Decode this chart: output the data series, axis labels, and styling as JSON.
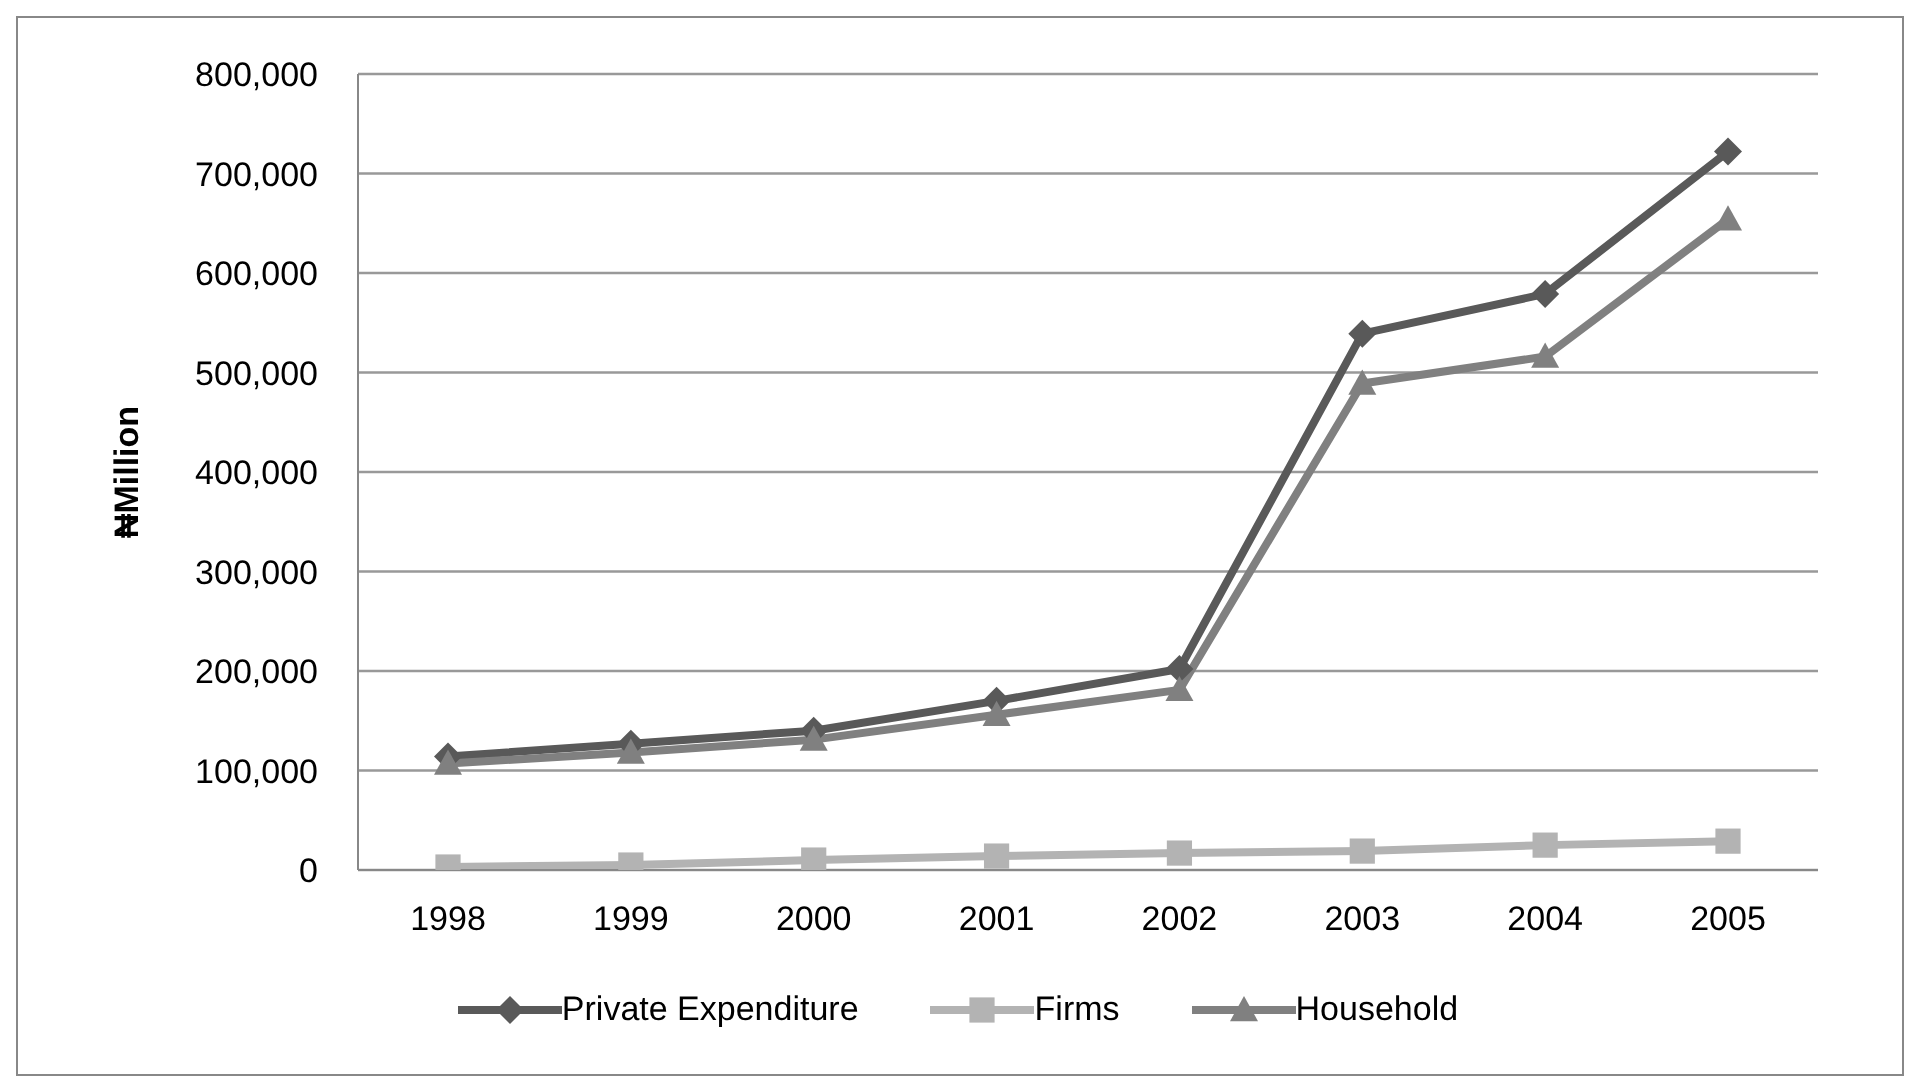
{
  "chart_data": {
    "type": "line",
    "ylabel": "₦Million",
    "categories": [
      "1998",
      "1999",
      "2000",
      "2001",
      "2002",
      "2003",
      "2004",
      "2005"
    ],
    "series": [
      {
        "name": "Private Expenditure",
        "color": "#595959",
        "marker": "diamond",
        "values": [
          114000,
          127000,
          140000,
          170000,
          202000,
          539000,
          579000,
          722000
        ]
      },
      {
        "name": "Firms",
        "color": "#b3b3b3",
        "marker": "square",
        "values": [
          3000,
          5000,
          10000,
          14000,
          17000,
          19000,
          25000,
          29000
        ]
      },
      {
        "name": "Household",
        "color": "#808080",
        "marker": "triangle",
        "values": [
          107000,
          118000,
          131000,
          156000,
          181000,
          489000,
          516000,
          654000
        ]
      }
    ],
    "ylim": [
      0,
      800000
    ],
    "yticks": [
      0,
      {
        "value": 100000,
        "label": "100,000"
      },
      {
        "value": 200000,
        "label": "200,000"
      },
      {
        "value": 300000,
        "label": "300,000"
      },
      {
        "value": 400000,
        "label": "400,000"
      },
      {
        "value": 500000,
        "label": "500,000"
      },
      {
        "value": 600000,
        "label": "600,000"
      },
      {
        "value": 700000,
        "label": "700,000"
      },
      {
        "value": 800000,
        "label": "800,000"
      }
    ],
    "grid": "y",
    "legend": "bottom",
    "line_style": "solid"
  }
}
